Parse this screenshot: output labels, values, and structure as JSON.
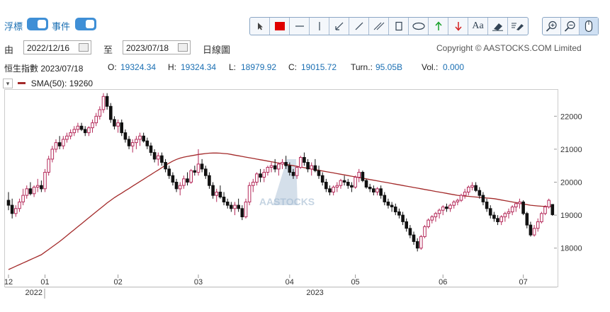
{
  "header": {
    "toggle1_label": "浮標",
    "toggle2_label": "事件",
    "tools": [
      "pointer-icon",
      "rect-color-icon",
      "hline-icon",
      "vline-icon",
      "arrow-line-icon",
      "line-icon",
      "parallel-line-icon",
      "rect-icon",
      "ellipse-icon",
      "up-arrow-icon",
      "down-arrow-icon",
      "text-icon",
      "eraser-icon",
      "edit-all-icon"
    ],
    "text_tool_label": "Aa",
    "zoom_tools": [
      "zoom-in-icon",
      "zoom-out-icon",
      "mouse-icon"
    ]
  },
  "range": {
    "from_label": "由",
    "from_date": "2022/12/16",
    "to_label": "至",
    "to_date": "2023/07/18",
    "interval": "日線圖",
    "copyright": "Copyright © AASTOCKS.COM Limited"
  },
  "quote": {
    "name_date": "恒生指數 2023/07/18",
    "open_label": "O:",
    "open": "19324.34",
    "high_label": "H:",
    "high": "19324.34",
    "low_label": "L:",
    "low": "18979.92",
    "close_label": "C:",
    "close": "19015.72",
    "turn_label": "Turn.:",
    "turn": "95.05B",
    "vol_label": "Vol.:",
    "vol": "0.000"
  },
  "legend": {
    "toggle": "▾",
    "sma_label": "SMA(50): 19260",
    "sma_color": "#a32a2a"
  },
  "chart_data": {
    "type": "candlestick",
    "watermark": "AASTOCKS",
    "colors": {
      "up": "#b52a5a",
      "down": "#111111",
      "sma": "#a32a2a"
    },
    "ylim": [
      17200,
      22800
    ],
    "yticks": [
      18000,
      19000,
      20000,
      21000,
      22000
    ],
    "month_ticks": [
      {
        "label": "12",
        "index": 0
      },
      {
        "label": "01",
        "index": 10
      },
      {
        "label": "02",
        "index": 30
      },
      {
        "label": "03",
        "index": 52
      },
      {
        "label": "04",
        "index": 77
      },
      {
        "label": "05",
        "index": 95
      },
      {
        "label": "06",
        "index": 119
      },
      {
        "label": "07",
        "index": 141
      }
    ],
    "year_labels": [
      {
        "label": "2022",
        "index": 5
      },
      {
        "label": "2023",
        "index": 82
      }
    ],
    "ohlc": [
      [
        19450,
        19700,
        19150,
        19300
      ],
      [
        19300,
        19500,
        18900,
        19050
      ],
      [
        19050,
        19300,
        18950,
        19200
      ],
      [
        19200,
        19500,
        19100,
        19400
      ],
      [
        19400,
        19800,
        19300,
        19600
      ],
      [
        19600,
        19900,
        19500,
        19800
      ],
      [
        19800,
        20000,
        19600,
        19650
      ],
      [
        19650,
        19900,
        19550,
        19850
      ],
      [
        19850,
        20100,
        19700,
        19900
      ],
      [
        19900,
        20050,
        19700,
        19800
      ],
      [
        19800,
        20400,
        19700,
        20300
      ],
      [
        20300,
        20800,
        20200,
        20700
      ],
      [
        20700,
        21100,
        20600,
        21000
      ],
      [
        21000,
        21300,
        20900,
        21200
      ],
      [
        21200,
        21400,
        21000,
        21100
      ],
      [
        21100,
        21400,
        21000,
        21300
      ],
      [
        21300,
        21500,
        21200,
        21400
      ],
      [
        21400,
        21600,
        21300,
        21500
      ],
      [
        21500,
        21700,
        21400,
        21600
      ],
      [
        21600,
        21800,
        21500,
        21700
      ],
      [
        21700,
        21800,
        21550,
        21600
      ],
      [
        21600,
        21700,
        21400,
        21500
      ],
      [
        21500,
        21700,
        21400,
        21650
      ],
      [
        21650,
        21900,
        21500,
        21800
      ],
      [
        21800,
        22100,
        21700,
        22000
      ],
      [
        22000,
        22300,
        21900,
        22200
      ],
      [
        22200,
        22700,
        22100,
        22600
      ],
      [
        22600,
        22700,
        22200,
        22300
      ],
      [
        22300,
        22400,
        21800,
        21900
      ],
      [
        21900,
        22000,
        21600,
        21700
      ],
      [
        21700,
        21900,
        21500,
        21800
      ],
      [
        21800,
        21900,
        21400,
        21500
      ],
      [
        21500,
        21600,
        21200,
        21300
      ],
      [
        21300,
        21400,
        21000,
        21100
      ],
      [
        21100,
        21300,
        20900,
        21200
      ],
      [
        21200,
        21400,
        21000,
        21300
      ],
      [
        21300,
        21500,
        21100,
        21400
      ],
      [
        21400,
        21500,
        21200,
        21250
      ],
      [
        21250,
        21350,
        21000,
        21100
      ],
      [
        21100,
        21200,
        20800,
        20900
      ],
      [
        20900,
        21000,
        20600,
        20700
      ],
      [
        20700,
        20900,
        20500,
        20800
      ],
      [
        20800,
        20900,
        20500,
        20600
      ],
      [
        20600,
        20700,
        20300,
        20400
      ],
      [
        20400,
        20500,
        20100,
        20200
      ],
      [
        20200,
        20300,
        19900,
        20000
      ],
      [
        20000,
        20100,
        19700,
        19800
      ],
      [
        19800,
        20000,
        19600,
        19900
      ],
      [
        19900,
        20200,
        19800,
        20100
      ],
      [
        20100,
        20300,
        19900,
        20000
      ],
      [
        20000,
        20400,
        19950,
        20350
      ],
      [
        20350,
        20500,
        20200,
        20300
      ],
      [
        20300,
        21000,
        20200,
        20550
      ],
      [
        20550,
        20700,
        20300,
        20400
      ],
      [
        20400,
        20500,
        20100,
        20200
      ],
      [
        20200,
        20300,
        19800,
        19900
      ],
      [
        19900,
        20000,
        19500,
        19600
      ],
      [
        19600,
        19800,
        19400,
        19700
      ],
      [
        19700,
        19900,
        19500,
        19550
      ],
      [
        19550,
        19700,
        19300,
        19400
      ],
      [
        19400,
        19500,
        19200,
        19300
      ],
      [
        19300,
        19400,
        19100,
        19200
      ],
      [
        19200,
        19400,
        19000,
        19300
      ],
      [
        19300,
        19500,
        19100,
        19200
      ],
      [
        19200,
        19300,
        18850,
        18950
      ],
      [
        18950,
        19500,
        18900,
        19400
      ],
      [
        19400,
        20000,
        19300,
        19900
      ],
      [
        19900,
        20100,
        19700,
        20000
      ],
      [
        20000,
        20300,
        19900,
        20250
      ],
      [
        20250,
        20400,
        20000,
        20150
      ],
      [
        20150,
        20400,
        20000,
        20300
      ],
      [
        20300,
        20500,
        20200,
        20450
      ],
      [
        20450,
        20600,
        20300,
        20500
      ],
      [
        20500,
        20700,
        20300,
        20400
      ],
      [
        20400,
        20600,
        20200,
        20550
      ],
      [
        20550,
        20700,
        20400,
        20600
      ],
      [
        20600,
        20800,
        20400,
        20500
      ],
      [
        20500,
        20600,
        20200,
        20300
      ],
      [
        20300,
        20400,
        20100,
        20200
      ],
      [
        20200,
        20500,
        20100,
        20450
      ],
      [
        20450,
        20800,
        20400,
        20750
      ],
      [
        20750,
        20900,
        20500,
        20600
      ],
      [
        20600,
        20700,
        20300,
        20400
      ],
      [
        20400,
        20600,
        20200,
        20500
      ],
      [
        20500,
        20700,
        20300,
        20350
      ],
      [
        20350,
        20500,
        20100,
        20200
      ],
      [
        20200,
        20300,
        19900,
        20000
      ],
      [
        20000,
        20100,
        19700,
        19800
      ],
      [
        19800,
        19900,
        19600,
        19700
      ],
      [
        19700,
        19900,
        19600,
        19850
      ],
      [
        19850,
        20000,
        19700,
        19900
      ],
      [
        19900,
        20100,
        19800,
        20050
      ],
      [
        20050,
        20200,
        19900,
        20000
      ],
      [
        20000,
        20100,
        19800,
        19900
      ],
      [
        19900,
        20000,
        19700,
        19850
      ],
      [
        19850,
        20200,
        19800,
        20150
      ],
      [
        20150,
        20400,
        20000,
        20300
      ],
      [
        20300,
        20350,
        20000,
        20050
      ],
      [
        20050,
        20100,
        19800,
        19850
      ],
      [
        19850,
        19950,
        19700,
        19800
      ],
      [
        19800,
        19900,
        19600,
        19700
      ],
      [
        19700,
        19850,
        19600,
        19800
      ],
      [
        19800,
        19900,
        19500,
        19600
      ],
      [
        19600,
        19700,
        19300,
        19400
      ],
      [
        19400,
        19500,
        19200,
        19300
      ],
      [
        19300,
        19400,
        19100,
        19250
      ],
      [
        19250,
        19350,
        19000,
        19100
      ],
      [
        19100,
        19200,
        18900,
        19000
      ],
      [
        19000,
        19100,
        18700,
        18800
      ],
      [
        18800,
        18900,
        18500,
        18600
      ],
      [
        18600,
        18700,
        18300,
        18400
      ],
      [
        18400,
        18500,
        18100,
        18200
      ],
      [
        18200,
        18300,
        17900,
        18000
      ],
      [
        18000,
        18400,
        17950,
        18350
      ],
      [
        18350,
        18700,
        18300,
        18650
      ],
      [
        18650,
        18900,
        18600,
        18850
      ],
      [
        18850,
        19000,
        18750,
        18950
      ],
      [
        18950,
        19100,
        18800,
        19050
      ],
      [
        19050,
        19200,
        18900,
        19150
      ],
      [
        19150,
        19300,
        19000,
        19250
      ],
      [
        19250,
        19350,
        19100,
        19200
      ],
      [
        19200,
        19350,
        19100,
        19300
      ],
      [
        19300,
        19450,
        19200,
        19400
      ],
      [
        19400,
        19500,
        19300,
        19450
      ],
      [
        19450,
        19650,
        19400,
        19600
      ],
      [
        19600,
        19800,
        19500,
        19700
      ],
      [
        19700,
        19900,
        19600,
        19850
      ],
      [
        19850,
        20000,
        19750,
        19900
      ],
      [
        19900,
        20000,
        19700,
        19750
      ],
      [
        19750,
        19850,
        19500,
        19600
      ],
      [
        19600,
        19700,
        19300,
        19400
      ],
      [
        19400,
        19500,
        19100,
        19200
      ],
      [
        19200,
        19300,
        18900,
        19000
      ],
      [
        19000,
        19100,
        18800,
        18900
      ],
      [
        18900,
        19000,
        18700,
        18800
      ],
      [
        18800,
        19000,
        18700,
        18950
      ],
      [
        18950,
        19100,
        18800,
        19050
      ],
      [
        19050,
        19200,
        18900,
        19100
      ],
      [
        19100,
        19300,
        19000,
        19250
      ],
      [
        19250,
        19400,
        19100,
        19350
      ],
      [
        19350,
        19500,
        19200,
        19400
      ],
      [
        19400,
        19450,
        19000,
        19050
      ],
      [
        19050,
        19100,
        18600,
        18700
      ],
      [
        18700,
        18800,
        18350,
        18400
      ],
      [
        18400,
        18700,
        18350,
        18600
      ],
      [
        18600,
        18900,
        18500,
        18800
      ],
      [
        18800,
        19100,
        18750,
        19050
      ],
      [
        19050,
        19300,
        19000,
        19250
      ],
      [
        19250,
        19500,
        19200,
        19450
      ],
      [
        19324.34,
        19324.34,
        18979.92,
        19015.72
      ]
    ],
    "sma": [
      17350,
      17400,
      17450,
      17500,
      17550,
      17600,
      17650,
      17700,
      17750,
      17800,
      17880,
      17960,
      18040,
      18120,
      18200,
      18290,
      18380,
      18470,
      18560,
      18650,
      18740,
      18830,
      18920,
      19010,
      19100,
      19190,
      19280,
      19370,
      19450,
      19530,
      19600,
      19670,
      19740,
      19810,
      19880,
      19950,
      20020,
      20090,
      20160,
      20230,
      20300,
      20370,
      20440,
      20510,
      20580,
      20640,
      20690,
      20730,
      20760,
      20780,
      20800,
      20820,
      20840,
      20855,
      20870,
      20880,
      20885,
      20885,
      20880,
      20870,
      20860,
      20840,
      20820,
      20800,
      20780,
      20760,
      20740,
      20720,
      20700,
      20680,
      20660,
      20640,
      20620,
      20600,
      20580,
      20560,
      20540,
      20520,
      20500,
      20480,
      20460,
      20440,
      20420,
      20400,
      20380,
      20360,
      20340,
      20320,
      20300,
      20280,
      20260,
      20240,
      20220,
      20200,
      20180,
      20160,
      20140,
      20120,
      20100,
      20080,
      20060,
      20040,
      20020,
      20000,
      19980,
      19960,
      19940,
      19920,
      19900,
      19880,
      19860,
      19840,
      19820,
      19800,
      19780,
      19760,
      19740,
      19720,
      19700,
      19680,
      19660,
      19640,
      19620,
      19600,
      19590,
      19580,
      19570,
      19560,
      19550,
      19540,
      19530,
      19520,
      19510,
      19500,
      19480,
      19460,
      19440,
      19420,
      19400,
      19380,
      19360,
      19340,
      19320,
      19300,
      19290,
      19280,
      19270,
      19265,
      19262,
      19260
    ]
  }
}
